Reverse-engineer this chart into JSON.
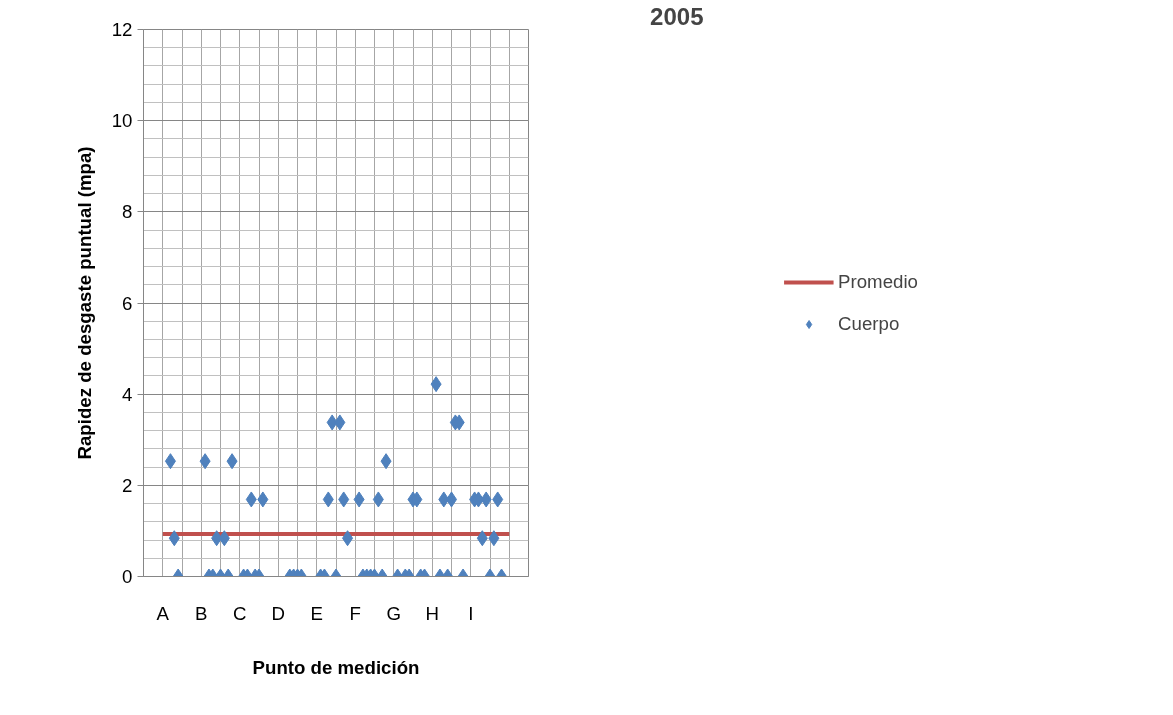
{
  "chart_data": {
    "type": "scatter",
    "title": "2005",
    "xlabel": "Punto de medición",
    "ylabel": "Rapidez de desgaste puntual (mpa)",
    "categories": [
      null,
      null,
      null,
      null,
      "A",
      null,
      null,
      null,
      null,
      null,
      null,
      null,
      null,
      null,
      "B",
      null,
      null,
      null,
      null,
      null,
      null,
      null,
      null,
      null,
      "C",
      null,
      null,
      null,
      null,
      null,
      null,
      null,
      null,
      null,
      "D",
      null,
      null,
      null,
      null,
      null,
      null,
      null,
      null,
      null,
      "E",
      null,
      null,
      null,
      null,
      null,
      null,
      null,
      null,
      null,
      "F",
      null,
      null,
      null,
      null,
      null,
      null,
      null,
      null,
      null,
      "G",
      null,
      null,
      null,
      null,
      null,
      null,
      null,
      null,
      null,
      "H",
      null,
      null,
      null,
      null,
      null,
      null,
      null,
      null,
      null,
      "I",
      null,
      null,
      null,
      null,
      null,
      null,
      null,
      null,
      null,
      null,
      null,
      null,
      null,
      null
    ],
    "ylim": [
      0,
      12
    ],
    "yticks": [
      0,
      2,
      4,
      6,
      8,
      10,
      12
    ],
    "grid": true,
    "legend": "right",
    "series": [
      {
        "name": "Promedio",
        "type": "line",
        "color": "#c0504d",
        "marker": "none",
        "values": [
          null,
          null,
          null,
          null,
          0.93,
          0.93,
          0.93,
          0.93,
          0.93,
          0.93,
          0.93,
          0.93,
          0.93,
          0.93,
          0.93,
          0.93,
          0.93,
          0.93,
          0.93,
          0.93,
          0.93,
          0.93,
          0.93,
          0.93,
          0.93,
          0.93,
          0.93,
          0.93,
          0.93,
          0.93,
          0.93,
          0.93,
          0.93,
          0.93,
          0.93,
          0.93,
          0.93,
          0.93,
          0.93,
          0.93,
          0.93,
          0.93,
          0.93,
          0.93,
          0.93,
          0.93,
          0.93,
          0.93,
          0.93,
          0.93,
          0.93,
          0.93,
          0.93,
          0.93,
          0.93,
          0.93,
          0.93,
          0.93,
          0.93,
          0.93,
          0.93,
          0.93,
          0.93,
          0.93,
          0.93,
          0.93,
          0.93,
          0.93,
          0.93,
          0.93,
          0.93,
          0.93,
          0.93,
          0.93,
          0.93,
          0.93,
          0.93,
          0.93,
          0.93,
          0.93,
          0.93,
          0.93,
          0.93,
          0.93,
          0.93,
          0.93,
          0.93,
          0.93,
          0.93,
          0.93,
          0.93,
          0.93,
          0.93,
          0.93,
          0.93,
          null,
          null,
          null,
          null
        ]
      },
      {
        "name": "Cuerpo",
        "color": "#4f81bd",
        "marker": "diamond",
        "values": [
          null,
          null,
          null,
          null,
          null,
          null,
          2.53,
          0.84,
          0,
          null,
          null,
          null,
          null,
          null,
          null,
          2.53,
          0,
          0,
          0.84,
          0,
          0.84,
          0,
          2.53,
          null,
          null,
          0,
          0,
          1.69,
          0,
          0,
          1.69,
          null,
          null,
          null,
          null,
          null,
          null,
          0,
          0,
          0,
          0,
          null,
          null,
          null,
          null,
          0,
          0,
          1.69,
          3.38,
          0,
          3.38,
          1.69,
          0.84,
          null,
          null,
          1.69,
          0,
          0,
          0,
          0,
          1.69,
          0,
          2.53,
          null,
          null,
          0,
          null,
          0,
          0,
          1.69,
          1.69,
          0,
          0,
          null,
          null,
          4.22,
          0,
          1.69,
          0,
          1.69,
          3.38,
          3.38,
          0,
          null,
          null,
          1.69,
          1.69,
          0.84,
          1.69,
          0,
          0.84,
          1.69,
          0,
          null,
          null,
          null,
          null,
          null,
          null
        ]
      }
    ]
  }
}
